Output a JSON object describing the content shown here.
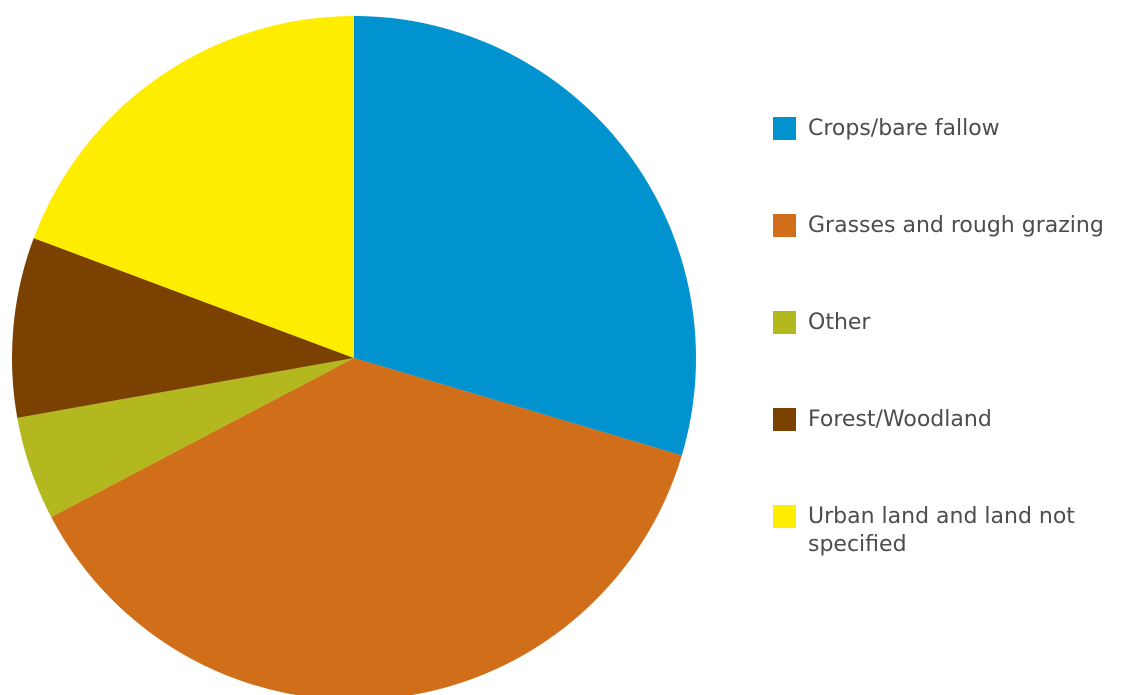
{
  "chart_data": {
    "type": "pie",
    "categories": [
      "Crops/bare fallow",
      "Grasses and rough grazing",
      "Other",
      "Forest/Woodland",
      "Urban land and land not specified"
    ],
    "values": [
      29.6,
      37.7,
      4.9,
      8.5,
      19.3
    ],
    "colors": [
      "#0093cf",
      "#d16e1a",
      "#b3b81f",
      "#7a4100",
      "#ffed00"
    ],
    "legend_position": "right",
    "start": "top, clockwise"
  }
}
